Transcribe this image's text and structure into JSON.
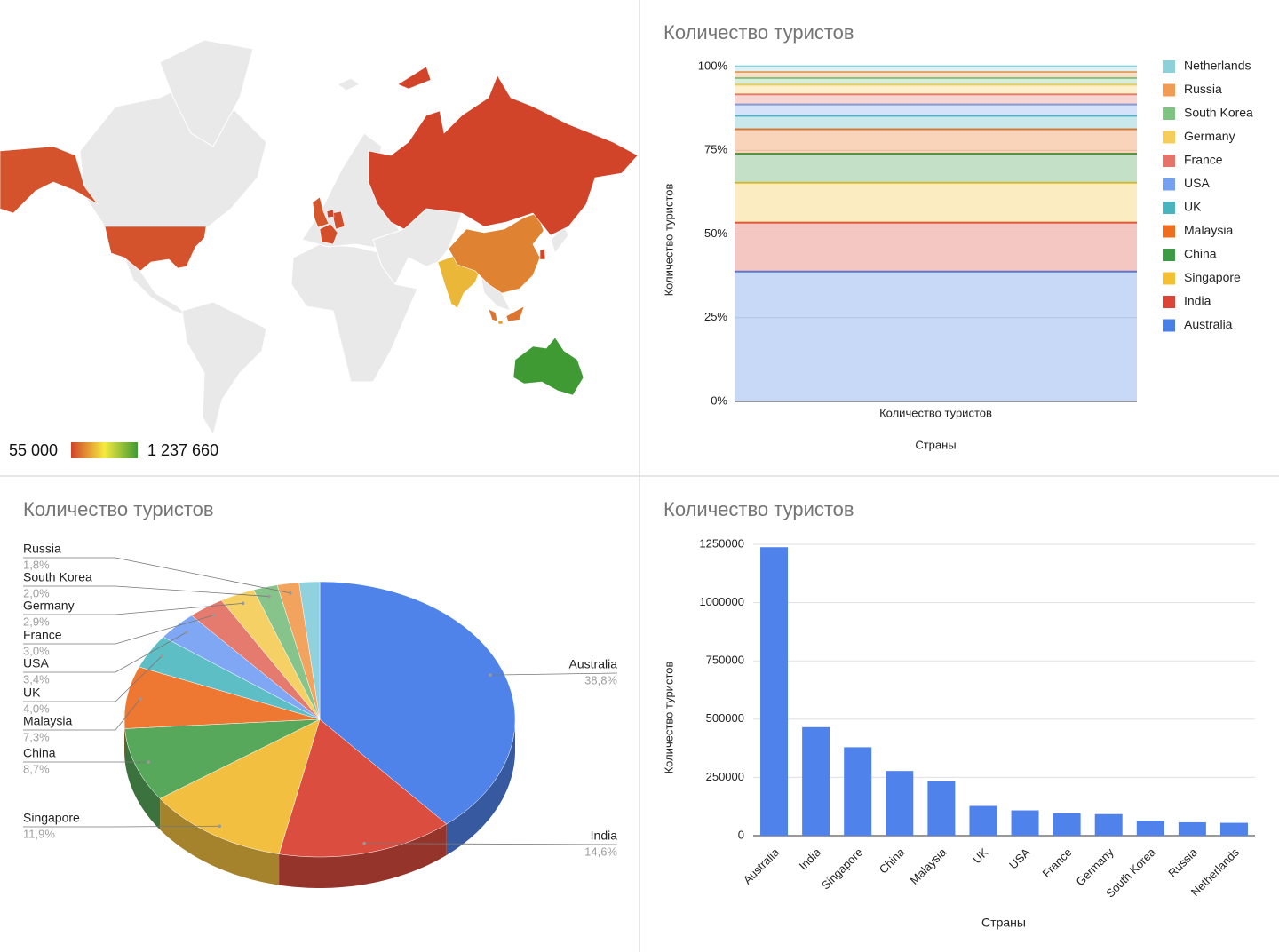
{
  "chart_data": [
    {
      "type": "geo",
      "values": [
        1237660,
        465700,
        379600,
        277500,
        232900,
        127600,
        108500,
        95700,
        92500,
        63800,
        57400,
        55000
      ],
      "colorbar_ticks": [
        {
          "value": 55000,
          "label": "55 000"
        },
        {
          "value": 1237660,
          "label": "1 237 660"
        }
      ],
      "colorbar_colors": [
        "#d1432a",
        "#f5ea3e",
        "#3f9a34"
      ]
    },
    {
      "type": "area",
      "stacking": "percent",
      "title": "Количество туристов",
      "x_label": "Страны",
      "y_label": "Количество туристов",
      "categories": [
        "Количество туристов"
      ],
      "series": [
        {
          "name": "Australia",
          "color": "#4a7fe6",
          "values": [
            38.8
          ]
        },
        {
          "name": "India",
          "color": "#db4437",
          "values": [
            14.6
          ]
        },
        {
          "name": "Singapore",
          "color": "#f4c033",
          "values": [
            11.9
          ]
        },
        {
          "name": "China",
          "color": "#3d9b45",
          "values": [
            8.7
          ]
        },
        {
          "name": "Malaysia",
          "color": "#ee6d1f",
          "values": [
            7.3
          ]
        },
        {
          "name": "UK",
          "color": "#4bb3bd",
          "values": [
            4.0
          ]
        },
        {
          "name": "USA",
          "color": "#76a0f0",
          "values": [
            3.4
          ]
        },
        {
          "name": "France",
          "color": "#e5736a",
          "values": [
            3.0
          ]
        },
        {
          "name": "Germany",
          "color": "#f6cd5a",
          "values": [
            2.9
          ]
        },
        {
          "name": "South Korea",
          "color": "#7fc383",
          "values": [
            2.0
          ]
        },
        {
          "name": "Russia",
          "color": "#f29b55",
          "values": [
            1.8
          ]
        },
        {
          "name": "Netherlands",
          "color": "#8ed0da",
          "values": [
            1.7
          ]
        }
      ],
      "ylim": [
        0,
        100
      ],
      "yticks": [
        {
          "value": 0,
          "label": "0%"
        },
        {
          "value": 25,
          "label": "25%"
        },
        {
          "value": 50,
          "label": "50%"
        },
        {
          "value": 75,
          "label": "75%"
        },
        {
          "value": 100,
          "label": "100%"
        }
      ],
      "grid": true
    },
    {
      "type": "pie3d",
      "title": "Количество туристов",
      "categories": [
        "Australia",
        "India",
        "Singapore",
        "China",
        "Malaysia",
        "UK",
        "USA",
        "France",
        "Germany",
        "South Korea",
        "Russia",
        null
      ],
      "values": [
        38.8,
        14.6,
        11.9,
        8.7,
        7.3,
        4.0,
        3.4,
        3.0,
        2.9,
        2.0,
        1.8,
        1.7
      ],
      "value_labels": [
        "38,8%",
        "14,6%",
        "11,9%",
        "8,7%",
        "7,3%",
        "4,0%",
        "3,4%",
        "3,0%",
        "2,9%",
        "2,0%",
        "1,8%",
        null
      ],
      "colors": [
        "#5083ea",
        "#da4d3f",
        "#f3bf41",
        "#58a85b",
        "#ee7832",
        "#5dbfc5",
        "#80a7f3",
        "#e57b6f",
        "#f5d064",
        "#87c48b",
        "#f2a35e",
        "#8fd1dc"
      ]
    },
    {
      "type": "bar",
      "title": "Количество туристов",
      "x_label": "Страны",
      "y_label": "Количество туристов",
      "categories": [
        "Australia",
        "India",
        "Singapore",
        "China",
        "Malaysia",
        "UK",
        "USA",
        "France",
        "Germany",
        "South Korea",
        "Russia",
        "Netherlands"
      ],
      "values": [
        1237660,
        465700,
        379600,
        277500,
        232900,
        127600,
        108500,
        95700,
        92500,
        63800,
        57400,
        55000
      ],
      "color": "#4f82ea",
      "ylim": [
        0,
        1250000
      ],
      "yticks": [
        0,
        250000,
        500000,
        750000,
        1000000,
        1250000
      ],
      "grid": true
    }
  ]
}
